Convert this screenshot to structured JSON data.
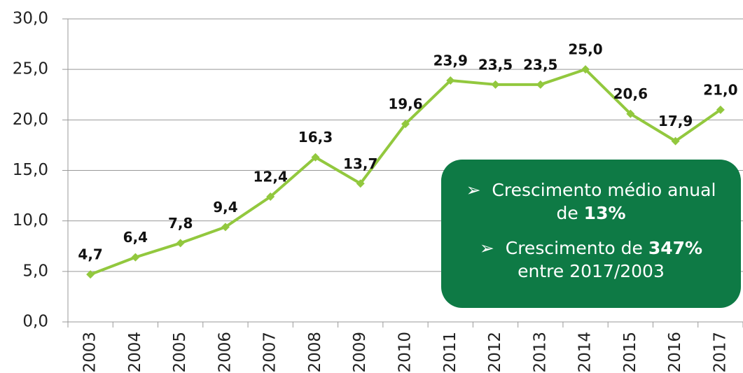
{
  "chart_data": {
    "type": "line",
    "categories": [
      "2003",
      "2004",
      "2005",
      "2006",
      "2007",
      "2008",
      "2009",
      "2010",
      "2011",
      "2012",
      "2013",
      "2014",
      "2015",
      "2016",
      "2017"
    ],
    "series": [
      {
        "color": "#92c83e",
        "values": [
          4.7,
          6.4,
          7.8,
          9.4,
          12.4,
          16.3,
          13.7,
          19.6,
          23.9,
          23.5,
          23.5,
          25.0,
          20.6,
          17.9,
          21.0
        ],
        "value_labels": [
          "4,7",
          "6,4",
          "7,8",
          "9,4",
          "12,4",
          "16,3",
          "13,7",
          "19,6",
          "23,9",
          "23,5",
          "23,5",
          "25,0",
          "20,6",
          "17,9",
          "21,0"
        ]
      }
    ],
    "ylim": [
      0,
      30
    ],
    "yticks": [
      {
        "value": 0,
        "label": "0,0"
      },
      {
        "value": 5,
        "label": "5,0"
      },
      {
        "value": 10,
        "label": "10,0"
      },
      {
        "value": 15,
        "label": "15,0"
      },
      {
        "value": 20,
        "label": "20,0"
      },
      {
        "value": 25,
        "label": "25,0"
      },
      {
        "value": 30,
        "label": "30,0"
      }
    ],
    "grid": true,
    "annotations": [
      {
        "text": "Crescimento médio anual de",
        "bold": "13%"
      },
      {
        "text": "Crescimento de",
        "bold": "347%",
        "rest": "entre 2017/2003"
      }
    ]
  }
}
